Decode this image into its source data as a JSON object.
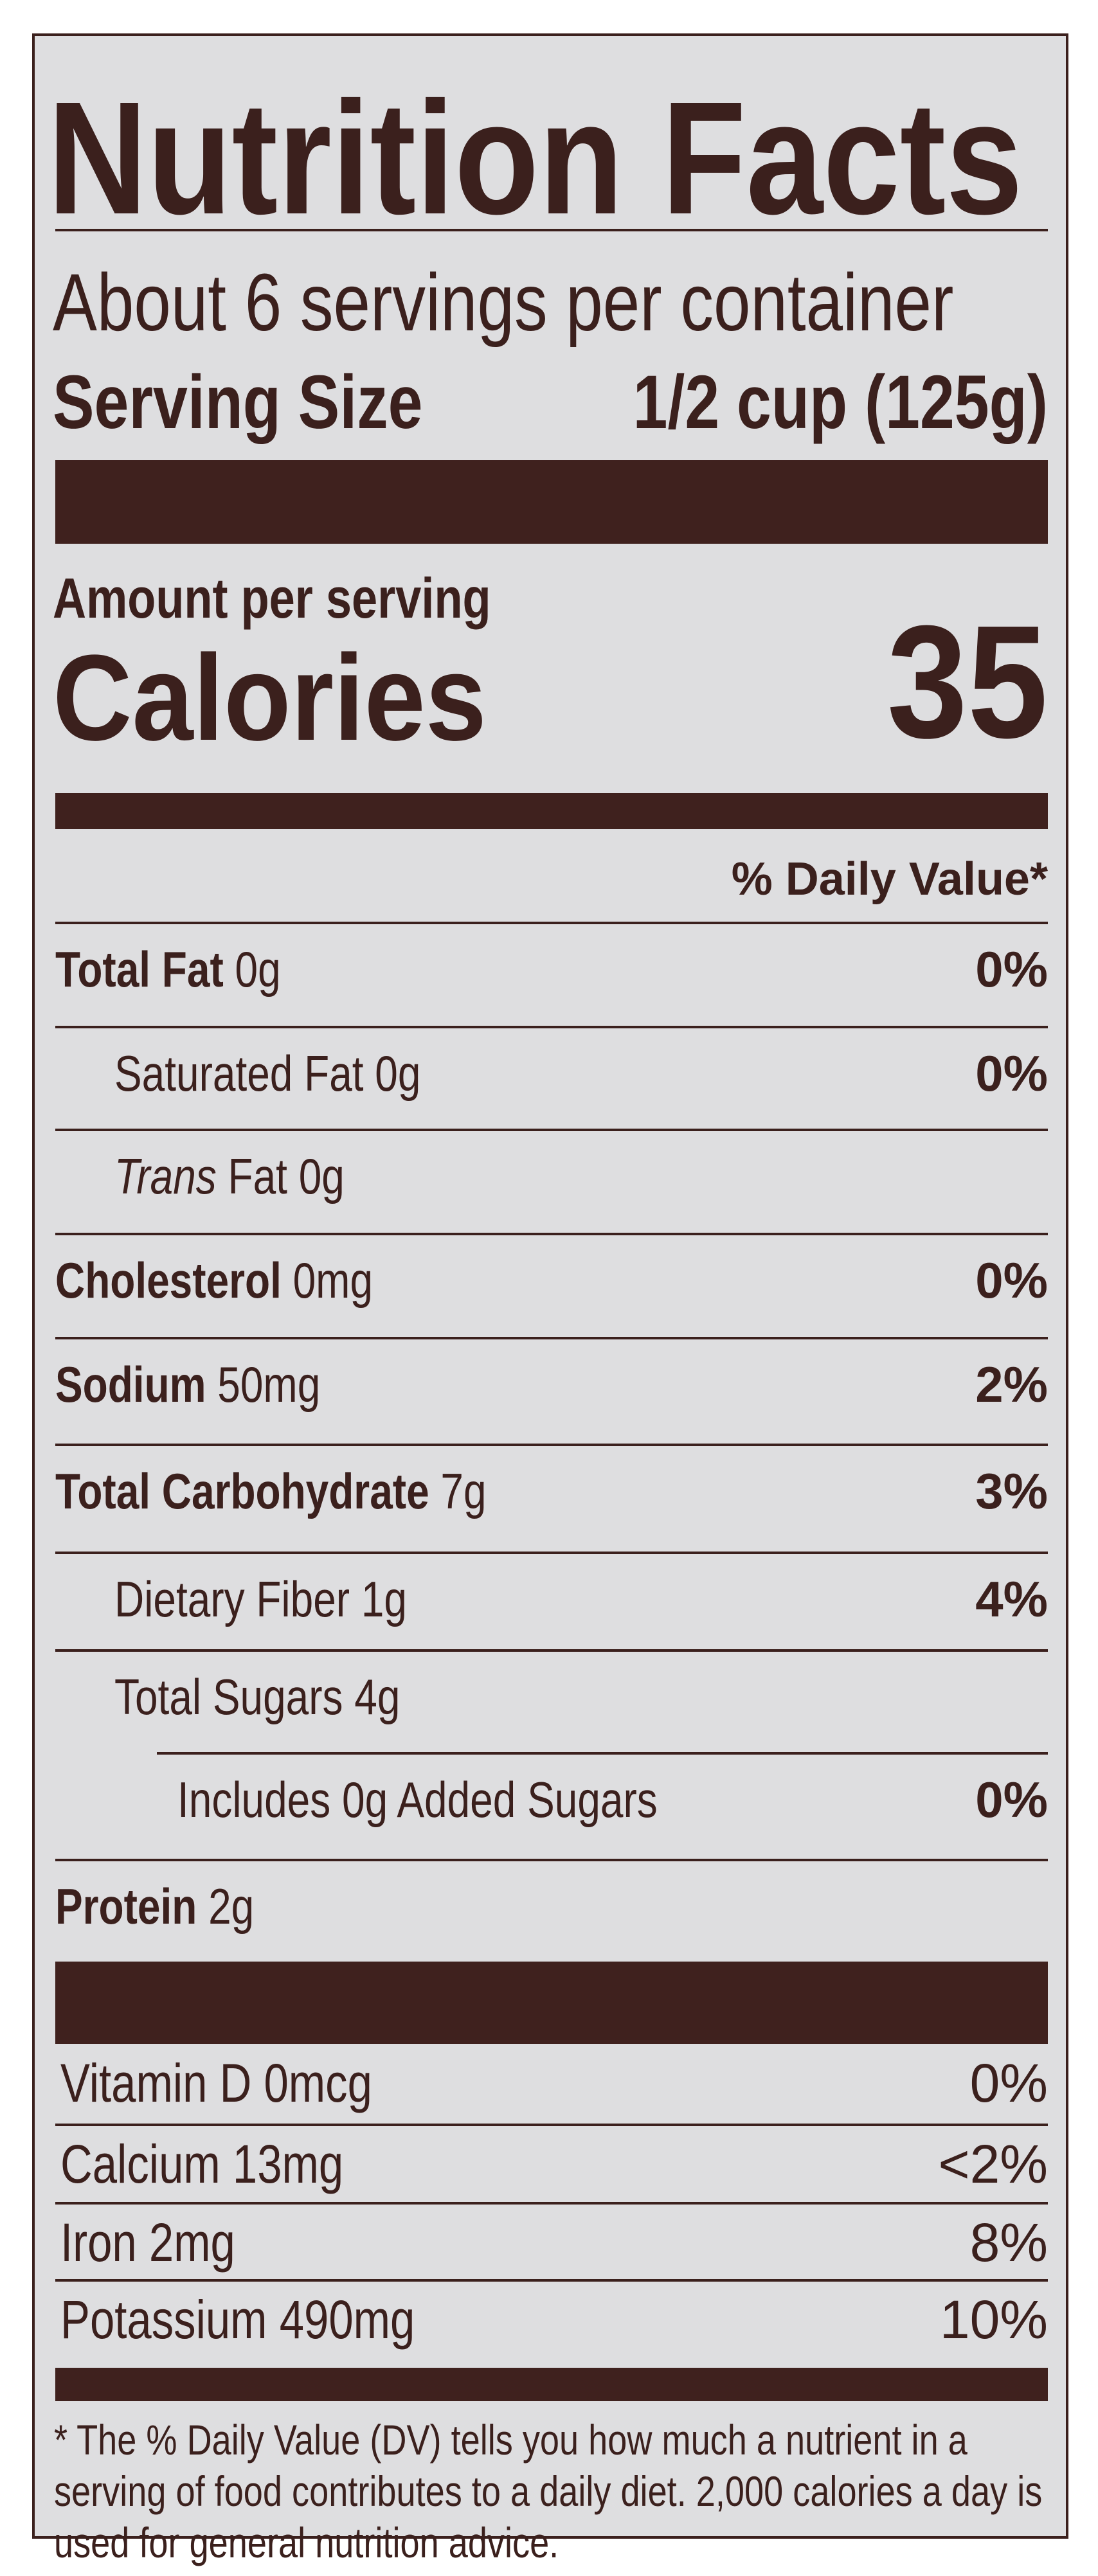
{
  "title": "Nutrition Facts",
  "servings_per_container": "About 6 servings per container",
  "serving_size": {
    "label": "Serving Size",
    "value": "1/2 cup (125g)"
  },
  "amount_per_serving": "Amount per serving",
  "calories": {
    "label": "Calories",
    "value": "35"
  },
  "daily_value_header": "% Daily Value*",
  "nutrients": [
    {
      "name": "Total Fat",
      "amount": "0g",
      "dv": "0%"
    },
    {
      "name": "Saturated Fat",
      "amount": "0g",
      "dv": "0%"
    },
    {
      "name": "Trans",
      "name_suffix": "Fat",
      "amount": "0g",
      "dv": ""
    },
    {
      "name": "Cholesterol",
      "amount": "0mg",
      "dv": "0%"
    },
    {
      "name": "Sodium",
      "amount": "50mg",
      "dv": "2%"
    },
    {
      "name": "Total Carbohydrate",
      "amount": "7g",
      "dv": "3%"
    },
    {
      "name": "Dietary Fiber",
      "amount": "1g",
      "dv": "4%"
    },
    {
      "name": "Total Sugars",
      "amount": "4g",
      "dv": ""
    },
    {
      "name": "Includes 0g Added Sugars",
      "amount": "",
      "dv": "0%"
    },
    {
      "name": "Protein",
      "amount": "2g",
      "dv": ""
    }
  ],
  "vitamins": [
    {
      "name": "Vitamin D",
      "amount": "0mcg",
      "dv": "0%"
    },
    {
      "name": "Calcium",
      "amount": "13mg",
      "dv": "<2%"
    },
    {
      "name": "Iron",
      "amount": "2mg",
      "dv": "8%"
    },
    {
      "name": "Potassium",
      "amount": "490mg",
      "dv": "10%"
    }
  ],
  "footnote": "* The % Daily Value (DV) tells you how much a nutrient in a serving of food contributes to a daily diet. 2,000 calories a day is used for general nutrition advice.",
  "colors": {
    "ink": "#3b201d",
    "background": "#dedee0"
  }
}
